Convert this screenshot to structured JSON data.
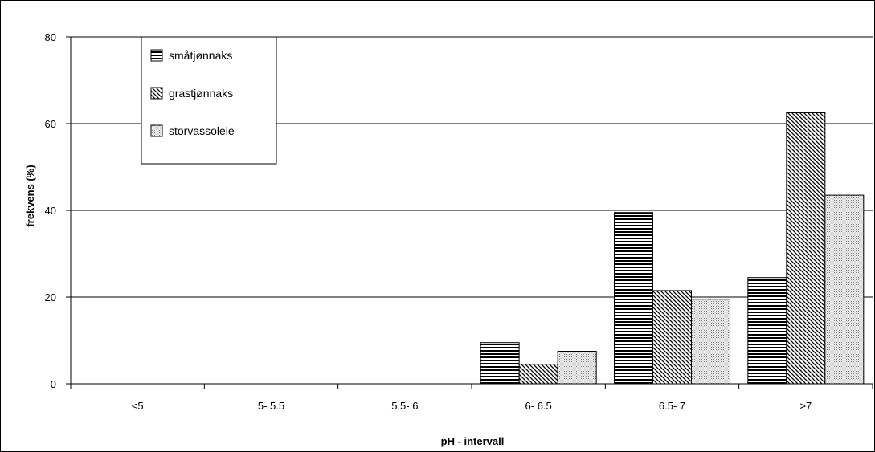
{
  "chart_data": {
    "type": "bar",
    "title": "",
    "xlabel": "pH - intervall",
    "ylabel": "frekvens (%)",
    "categories": [
      "<5",
      "5- 5.5",
      "5.5- 6",
      "6- 6.5",
      "6.5- 7",
      ">7"
    ],
    "ylim": [
      0,
      80
    ],
    "yticks": [
      0,
      20,
      40,
      60,
      80
    ],
    "grid": true,
    "legend_position": "top-left",
    "series": [
      {
        "name": "småtjønnaks",
        "pattern": "horizontal-lines",
        "values": [
          0,
          0,
          0,
          9.5,
          39.5,
          24.5
        ]
      },
      {
        "name": "grastjønnaks",
        "pattern": "diagonal-lines",
        "values": [
          0,
          0,
          0,
          4.5,
          21.5,
          62.5
        ]
      },
      {
        "name": "storvassoleie",
        "pattern": "dots",
        "values": [
          0,
          0,
          0,
          7.5,
          19.5,
          43.5
        ]
      }
    ]
  }
}
